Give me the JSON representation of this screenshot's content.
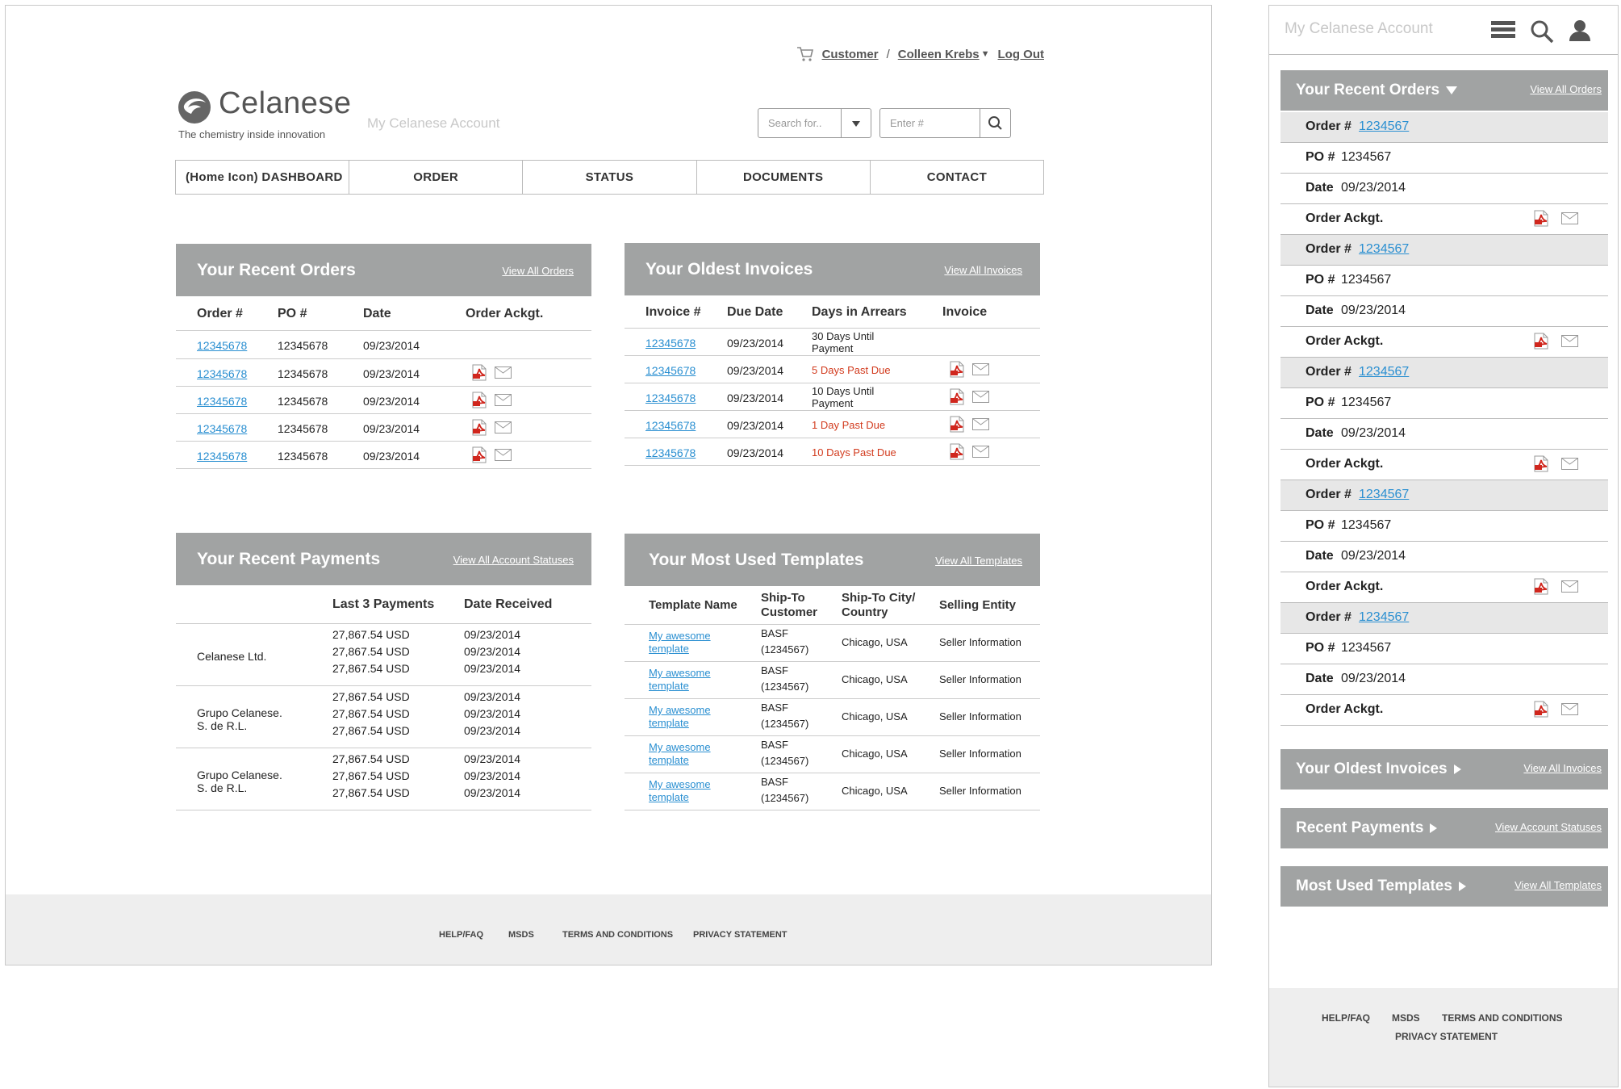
{
  "desktop": {
    "utility": {
      "customer": "Customer",
      "separator": "/",
      "user": "Colleen Krebs",
      "logout": "Log Out"
    },
    "logo": {
      "word": "Celanese",
      "tagline": "The chemistry inside innovation"
    },
    "my_account": "My Celanese Account",
    "search": {
      "search_for_placeholder": "Search for..",
      "enter_placeholder": "Enter #"
    },
    "nav": [
      "(Home Icon) DASHBOARD",
      "ORDER",
      "STATUS",
      "DOCUMENTS",
      "CONTACT"
    ],
    "recent_orders": {
      "title": "Your Recent Orders",
      "link": "View All Orders",
      "columns": [
        "Order #",
        "PO #",
        "Date",
        "Order Ackgt."
      ],
      "rows": [
        {
          "order": "12345678",
          "po": "12345678",
          "date": "09/23/2014",
          "icons": false
        },
        {
          "order": "12345678",
          "po": "12345678",
          "date": "09/23/2014",
          "icons": true
        },
        {
          "order": "12345678",
          "po": "12345678",
          "date": "09/23/2014",
          "icons": true
        },
        {
          "order": "12345678",
          "po": "12345678",
          "date": "09/23/2014",
          "icons": true
        },
        {
          "order": "12345678",
          "po": "12345678",
          "date": "09/23/2014",
          "icons": true
        }
      ]
    },
    "oldest_invoices": {
      "title": "Your Oldest Invoices",
      "link": "View All Invoices",
      "columns": [
        "Invoice #",
        "Due Date",
        "Days  in Arrears",
        "Invoice"
      ],
      "rows": [
        {
          "invoice": "12345678",
          "due": "09/23/2014",
          "arrears_1": "30 Days Until",
          "arrears_2": "Payment",
          "overdue": false,
          "icons": false
        },
        {
          "invoice": "12345678",
          "due": "09/23/2014",
          "arrears_1": "5 Days Past Due",
          "arrears_2": "",
          "overdue": true,
          "icons": true
        },
        {
          "invoice": "12345678",
          "due": "09/23/2014",
          "arrears_1": "10 Days Until",
          "arrears_2": "Payment",
          "overdue": false,
          "icons": true
        },
        {
          "invoice": "12345678",
          "due": "09/23/2014",
          "arrears_1": "1 Day Past Due",
          "arrears_2": "",
          "overdue": true,
          "icons": true
        },
        {
          "invoice": "12345678",
          "due": "09/23/2014",
          "arrears_1": "10 Days Past Due",
          "arrears_2": "",
          "overdue": true,
          "icons": true
        }
      ]
    },
    "recent_payments": {
      "title": "Your Recent Payments",
      "link": "View All Account Statuses",
      "columns": [
        "Last 3 Payments",
        "Date Received"
      ],
      "groups": [
        {
          "entity_1": "Celanese Ltd.",
          "entity_2": "",
          "payments": [
            "27,867.54 USD",
            "27,867.54 USD",
            "27,867.54 USD"
          ],
          "dates": [
            "09/23/2014",
            "09/23/2014",
            "09/23/2014"
          ]
        },
        {
          "entity_1": "Grupo Celanese.",
          "entity_2": "S. de R.L.",
          "payments": [
            "27,867.54 USD",
            "27,867.54 USD",
            "27,867.54 USD"
          ],
          "dates": [
            "09/23/2014",
            "09/23/2014",
            "09/23/2014"
          ]
        },
        {
          "entity_1": "Grupo Celanese.",
          "entity_2": "S. de R.L.",
          "payments": [
            "27,867.54 USD",
            "27,867.54 USD",
            "27,867.54 USD"
          ],
          "dates": [
            "09/23/2014",
            "09/23/2014",
            "09/23/2014"
          ]
        }
      ]
    },
    "templates": {
      "title": "Your Most Used Templates",
      "link": "View All Templates",
      "columns": [
        [
          "Template Name",
          ""
        ],
        [
          "Ship-To",
          "Customer"
        ],
        [
          "Ship-To City/",
          "Country"
        ],
        [
          "Selling Entity",
          ""
        ]
      ],
      "rows": [
        {
          "name_1": "My awesome",
          "name_2": "template",
          "cust_1": "BASF",
          "cust_2": "(1234567)",
          "city": "Chicago, USA",
          "entity": "Seller Information"
        },
        {
          "name_1": "My awesome",
          "name_2": "template",
          "cust_1": "BASF",
          "cust_2": "(1234567)",
          "city": "Chicago, USA",
          "entity": "Seller Information"
        },
        {
          "name_1": "My awesome",
          "name_2": "template",
          "cust_1": "BASF",
          "cust_2": "(1234567)",
          "city": "Chicago, USA",
          "entity": "Seller Information"
        },
        {
          "name_1": "My awesome",
          "name_2": "template",
          "cust_1": "BASF",
          "cust_2": "(1234567)",
          "city": "Chicago, USA",
          "entity": "Seller Information"
        },
        {
          "name_1": "My awesome",
          "name_2": "template",
          "cust_1": "BASF",
          "cust_2": "(1234567)",
          "city": "Chicago, USA",
          "entity": "Seller Information"
        }
      ]
    },
    "footer": [
      "HELP/FAQ",
      "MSDS",
      "TERMS AND CONDITIONS",
      "PRIVACY STATEMENT"
    ]
  },
  "mobile": {
    "title": "My Celanese Account",
    "recent_orders": {
      "title": "Your Recent Orders",
      "link": "View All Orders"
    },
    "labels": {
      "order": "Order #",
      "po": "PO #",
      "date": "Date",
      "ackgt": "Order Ackgt."
    },
    "orders": [
      {
        "order": "1234567",
        "po": "1234567",
        "date": "09/23/2014"
      },
      {
        "order": "1234567",
        "po": "1234567",
        "date": "09/23/2014"
      },
      {
        "order": "1234567",
        "po": "1234567",
        "date": "09/23/2014"
      },
      {
        "order": "1234567",
        "po": "1234567",
        "date": "09/23/2014"
      },
      {
        "order": "1234567",
        "po": "1234567",
        "date": "09/23/2014"
      }
    ],
    "sections": [
      {
        "title": "Your Oldest Invoices",
        "link": "View All Invoices"
      },
      {
        "title": "Recent Payments",
        "link": "View Account Statuses"
      },
      {
        "title": "Most Used Templates",
        "link": "View All Templates"
      }
    ],
    "footer": [
      "HELP/FAQ",
      "MSDS",
      "TERMS AND CONDITIONS",
      "PRIVACY STATEMENT"
    ]
  },
  "colors": {
    "header_gray": "#a1a3a3",
    "link_blue": "#2a8fd1",
    "overdue_red": "#d23b1e",
    "footer_gray": "#eeeeee"
  }
}
